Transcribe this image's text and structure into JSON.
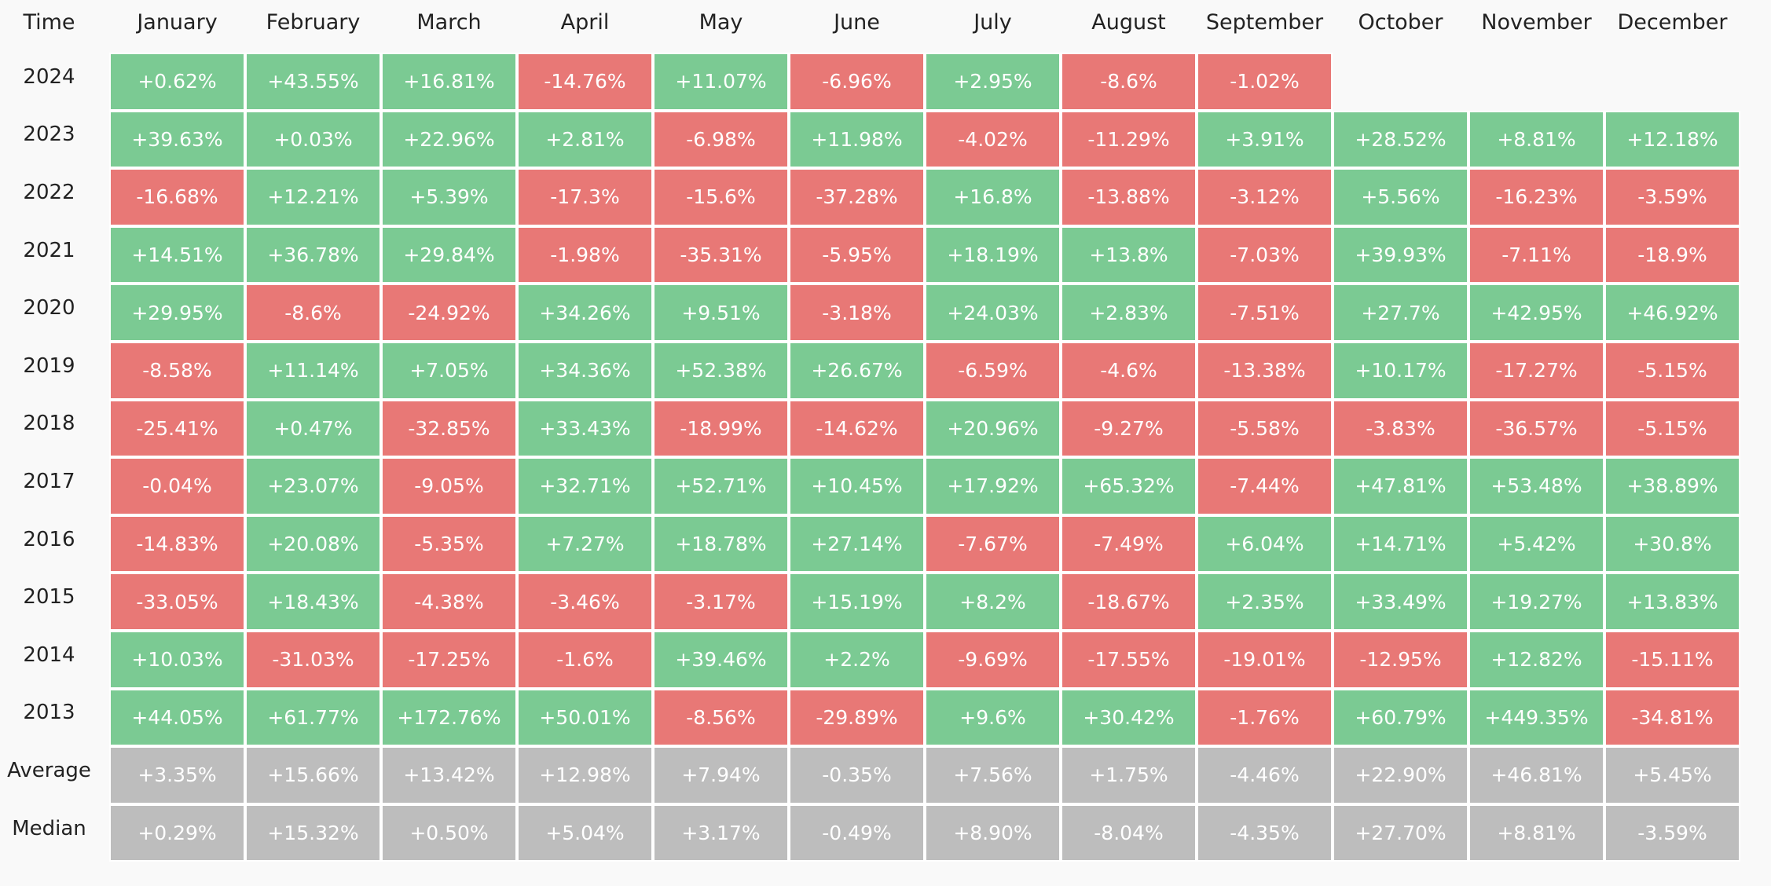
{
  "table": {
    "header": [
      "Time",
      "January",
      "February",
      "March",
      "April",
      "May",
      "June",
      "July",
      "August",
      "September",
      "October",
      "November",
      "December"
    ],
    "rows": [
      [
        "2024",
        "+0.62%",
        "+43.55%",
        "+16.81%",
        "-14.76%",
        "+11.07%",
        "-6.96%",
        "+2.95%",
        "-8.6%",
        "-1.02%"
      ],
      [
        "2023",
        "+39.63%",
        "+0.03%",
        "+22.96%",
        "+2.81%",
        "-6.98%",
        "+11.98%",
        "-4.02%",
        "-11.29%",
        "+3.91%",
        "+28.52%",
        "+8.81%",
        "+12.18%"
      ],
      [
        "2022",
        "-16.68%",
        "+12.21%",
        "+5.39%",
        "-17.3%",
        "-15.6%",
        "-37.28%",
        "+16.8%",
        "-13.88%",
        "-3.12%",
        "+5.56%",
        "-16.23%",
        "-3.59%"
      ],
      [
        "2021",
        "+14.51%",
        "+36.78%",
        "+29.84%",
        "-1.98%",
        "-35.31%",
        "-5.95%",
        "+18.19%",
        "+13.8%",
        "-7.03%",
        "+39.93%",
        "-7.11%",
        "-18.9%"
      ],
      [
        "2020",
        "+29.95%",
        "-8.6%",
        "-24.92%",
        "+34.26%",
        "+9.51%",
        "-3.18%",
        "+24.03%",
        "+2.83%",
        "-7.51%",
        "+27.7%",
        "+42.95%",
        "+46.92%"
      ],
      [
        "2019",
        "-8.58%",
        "+11.14%",
        "+7.05%",
        "+34.36%",
        "+52.38%",
        "+26.67%",
        "-6.59%",
        "-4.6%",
        "-13.38%",
        "+10.17%",
        "-17.27%",
        "-5.15%"
      ],
      [
        "2018",
        "-25.41%",
        "+0.47%",
        "-32.85%",
        "+33.43%",
        "-18.99%",
        "-14.62%",
        "+20.96%",
        "-9.27%",
        "-5.58%",
        "-3.83%",
        "-36.57%",
        "-5.15%"
      ],
      [
        "2017",
        "-0.04%",
        "+23.07%",
        "-9.05%",
        "+32.71%",
        "+52.71%",
        "+10.45%",
        "+17.92%",
        "+65.32%",
        "-7.44%",
        "+47.81%",
        "+53.48%",
        "+38.89%"
      ],
      [
        "2016",
        "-14.83%",
        "+20.08%",
        "-5.35%",
        "+7.27%",
        "+18.78%",
        "+27.14%",
        "-7.67%",
        "-7.49%",
        "+6.04%",
        "+14.71%",
        "+5.42%",
        "+30.8%"
      ],
      [
        "2015",
        "-33.05%",
        "+18.43%",
        "-4.38%",
        "-3.46%",
        "-3.17%",
        "+15.19%",
        "+8.2%",
        "-18.67%",
        "+2.35%",
        "+33.49%",
        "+19.27%",
        "+13.83%"
      ],
      [
        "2014",
        "+10.03%",
        "-31.03%",
        "-17.25%",
        "-1.6%",
        "+39.46%",
        "+2.2%",
        "-9.69%",
        "-17.55%",
        "-19.01%",
        "-12.95%",
        "+12.82%",
        "-15.11%"
      ],
      [
        "2013",
        "+44.05%",
        "+61.77%",
        "+172.76%",
        "+50.01%",
        "-8.56%",
        "-29.89%",
        "+9.6%",
        "+30.42%",
        "-1.76%",
        "+60.79%",
        "+449.35%",
        "-34.81%"
      ]
    ],
    "summary_rows": [
      [
        "Average",
        "+3.35%",
        "+15.66%",
        "+13.42%",
        "+12.98%",
        "+7.94%",
        "-0.35%",
        "+7.56%",
        "+1.75%",
        "-4.46%",
        "+22.90%",
        "+46.81%",
        "+5.45%"
      ],
      [
        "Median",
        "+0.29%",
        "+15.32%",
        "+0.50%",
        "+5.04%",
        "+3.17%",
        "-0.49%",
        "+8.90%",
        "-8.04%",
        "-4.35%",
        "+27.70%",
        "+8.81%",
        "-3.59%"
      ]
    ]
  }
}
